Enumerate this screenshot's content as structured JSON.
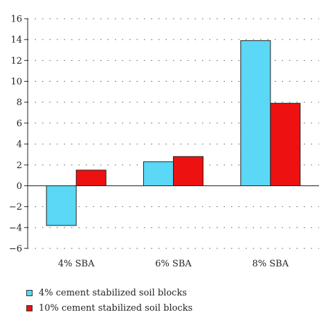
{
  "chart_data": {
    "type": "bar",
    "categories": [
      "4% SBA",
      "6% SBA",
      "8% SBA"
    ],
    "series": [
      {
        "name": "4% cement stabilized soil blocks",
        "color": "#5ad8f5",
        "values": [
          -3.8,
          2.3,
          13.9
        ]
      },
      {
        "name": "10% cement stabilized soil blocks",
        "color": "#ee1111",
        "values": [
          1.5,
          2.8,
          7.9
        ]
      }
    ],
    "title": "",
    "xlabel": "",
    "ylabel": "",
    "ylim": [
      -6,
      16
    ],
    "yticks": [
      -6,
      -4,
      -2,
      0,
      2,
      4,
      6,
      8,
      10,
      12,
      14,
      16
    ],
    "grid": "dotted horizontal",
    "legend_position": "bottom"
  }
}
